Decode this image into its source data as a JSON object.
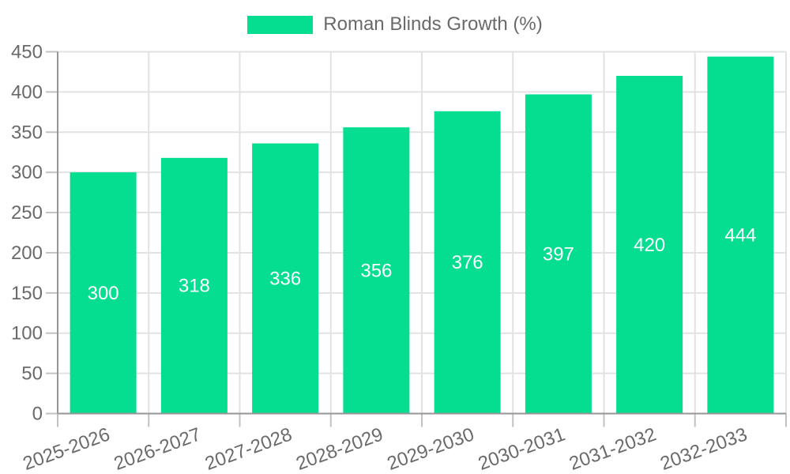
{
  "chart_data": {
    "type": "bar",
    "title": "",
    "legend": {
      "label": "Roman Blinds Growth (%)",
      "position": "top"
    },
    "categories": [
      "2025-2026",
      "2026-2027",
      "2027-2028",
      "2028-2029",
      "2029-2030",
      "2030-2031",
      "2031-2032",
      "2032-2033"
    ],
    "values": [
      300,
      318,
      336,
      356,
      376,
      397,
      420,
      444
    ],
    "xlabel": "",
    "ylabel": "",
    "ylim": [
      0,
      450
    ],
    "yticks": [
      0,
      50,
      100,
      150,
      200,
      250,
      300,
      350,
      400,
      450
    ],
    "grid": true,
    "bar_labels_visible": true,
    "x_label_rotation_deg": -20,
    "colors": {
      "bar": "#05DE90",
      "bar_value_text": "#FFFFFF",
      "axis_text": "#6A6A6A",
      "legend_text": "#6A6A6A",
      "grid_line": "#E2E2E2",
      "axis_line": "#969696",
      "tick_line": "#C2C2C2"
    }
  }
}
